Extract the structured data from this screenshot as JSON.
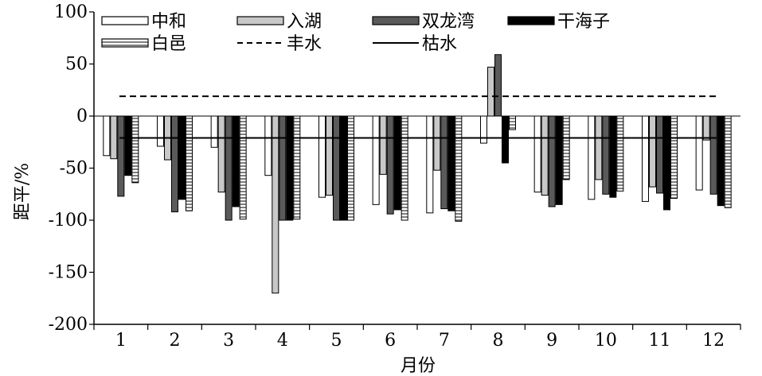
{
  "chart_data": {
    "type": "bar",
    "xlabel": "月份",
    "ylabel": "距平/%",
    "ylim": [
      -200,
      100
    ],
    "yticks": [
      100,
      50,
      0,
      -50,
      -100,
      -150,
      -200
    ],
    "categories": [
      "1",
      "2",
      "3",
      "4",
      "5",
      "6",
      "7",
      "8",
      "9",
      "10",
      "11",
      "12"
    ],
    "series": [
      {
        "name": "中和",
        "style": "white",
        "values": [
          -38,
          -29,
          -30,
          -57,
          -78,
          -85,
          -93,
          -26,
          -73,
          -80,
          -82,
          -71
        ]
      },
      {
        "name": "入湖",
        "style": "lightgray",
        "values": [
          -41,
          -42,
          -73,
          -170,
          -76,
          -56,
          -52,
          47,
          -76,
          -61,
          -68,
          -23
        ]
      },
      {
        "name": "双龙湾",
        "style": "darkgray",
        "values": [
          -77,
          -92,
          -100,
          -100,
          -100,
          -94,
          -89,
          59,
          -87,
          -75,
          -74,
          -75
        ]
      },
      {
        "name": "干海子",
        "style": "black",
        "values": [
          -57,
          -80,
          -87,
          -100,
          -100,
          -90,
          -91,
          -45,
          -85,
          -78,
          -90,
          -86
        ]
      },
      {
        "name": "白邑",
        "style": "striped",
        "values": [
          -64,
          -91,
          -99,
          -99,
          -100,
          -100,
          -101,
          -13,
          -61,
          -72,
          -79,
          -88
        ]
      }
    ],
    "reference_lines": [
      {
        "name": "丰水",
        "style": "dashed",
        "value": 19
      },
      {
        "name": "枯水",
        "style": "solid",
        "value": -21
      }
    ],
    "legend_position": "top-left",
    "grid": false,
    "colors": {
      "white": "#ffffff",
      "lightgray": "#c8c8c8",
      "darkgray": "#5a5a5a",
      "black": "#000000",
      "outline": "#000000"
    }
  }
}
